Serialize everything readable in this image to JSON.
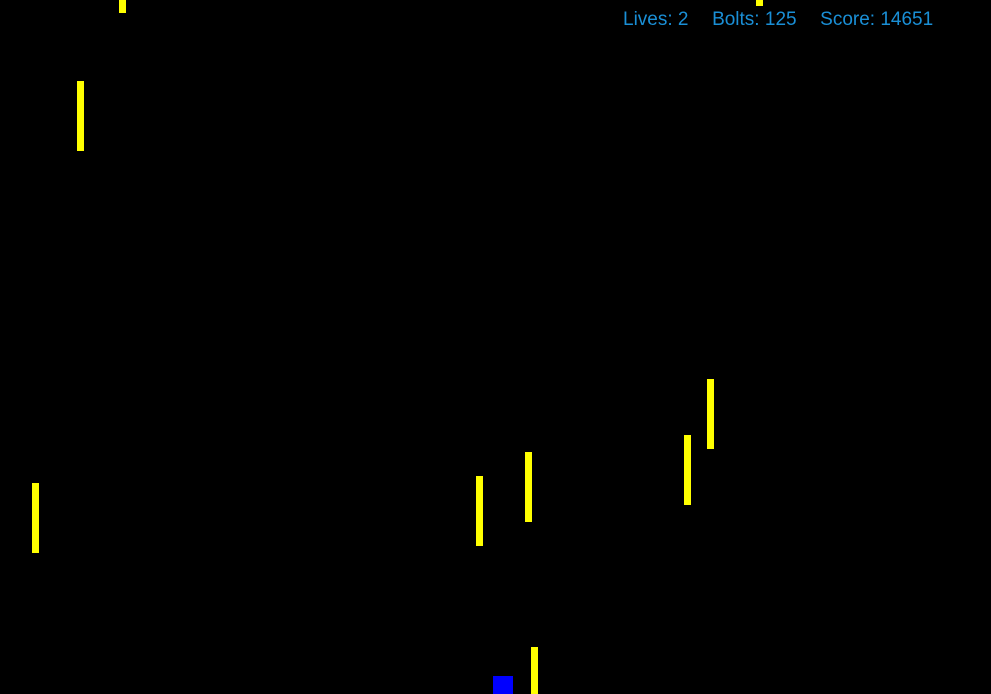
{
  "hud": {
    "lives_label": "Lives:",
    "lives_value": "2",
    "bolts_label": "Bolts:",
    "bolts_value": "125",
    "score_label": "Score:",
    "score_value": "14651",
    "text_color": "#1a8fd6"
  },
  "colors": {
    "background": "#000000",
    "bolt": "#ffff00",
    "player": "#0000ff"
  },
  "entities": {
    "bolt_count": 10,
    "player_name": "player-ship"
  }
}
